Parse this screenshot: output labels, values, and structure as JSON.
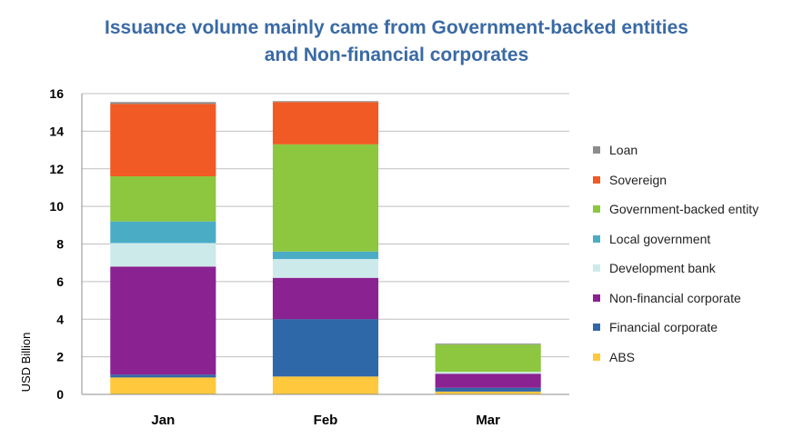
{
  "chart_data": {
    "type": "bar",
    "stacked": true,
    "title_line1": "Issuance volume mainly came from Government-backed entities",
    "title_line2": "and Non-financial corporates",
    "xlabel": "",
    "ylabel": "USD Billion",
    "ylim": [
      0,
      16
    ],
    "yticks": [
      0,
      2,
      4,
      6,
      8,
      10,
      12,
      14,
      16
    ],
    "grid": true,
    "legend_position": "right",
    "categories": [
      "Jan",
      "Feb",
      "Mar"
    ],
    "series": [
      {
        "name": "ABS",
        "color": "#ffc83d",
        "values": [
          0.9,
          0.95,
          0.15
        ]
      },
      {
        "name": "Financial corporate",
        "color": "#2f68a8",
        "values": [
          0.15,
          3.05,
          0.2
        ]
      },
      {
        "name": "Non-financial corporate",
        "color": "#8b2291",
        "values": [
          5.75,
          2.2,
          0.75
        ]
      },
      {
        "name": "Development bank",
        "color": "#cdeaea",
        "values": [
          1.25,
          1.0,
          0.1
        ]
      },
      {
        "name": "Local government",
        "color": "#4bacc6",
        "values": [
          1.15,
          0.4,
          0.0
        ]
      },
      {
        "name": "Government-backed entity",
        "color": "#8dc63f",
        "values": [
          2.4,
          5.7,
          1.45
        ]
      },
      {
        "name": "Sovereign",
        "color": "#f15a24",
        "values": [
          3.85,
          2.25,
          0.0
        ]
      },
      {
        "name": "Loan",
        "color": "#8c8c8c",
        "values": [
          0.1,
          0.05,
          0.05
        ]
      }
    ]
  }
}
